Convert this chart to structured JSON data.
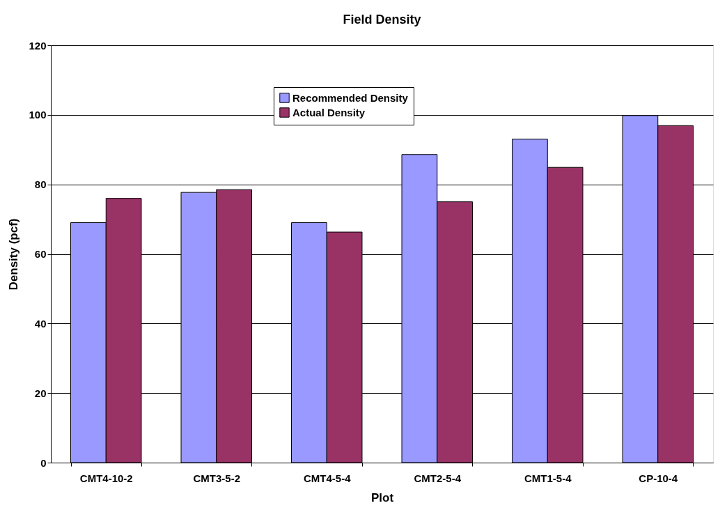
{
  "chart_data": {
    "type": "bar",
    "title": "Field Density",
    "xlabel": "Plot",
    "ylabel": "Density (pcf)",
    "categories": [
      "CMT4-10-2",
      "CMT3-5-2",
      "CMT4-5-4",
      "CMT2-5-4",
      "CMT1-5-4",
      "CP-10-4"
    ],
    "series": [
      {
        "name": "Recommended Density",
        "color": "#9999ff",
        "values": [
          69,
          77.7,
          69,
          88.6,
          93,
          99.8
        ]
      },
      {
        "name": "Actual Density",
        "color": "#993366",
        "values": [
          76,
          78.5,
          66.3,
          75,
          84.9,
          96.9
        ]
      }
    ],
    "ylim": [
      0,
      120
    ],
    "yticks": [
      0,
      20,
      40,
      60,
      80,
      100,
      120
    ],
    "grid": "y",
    "legend": "top"
  }
}
